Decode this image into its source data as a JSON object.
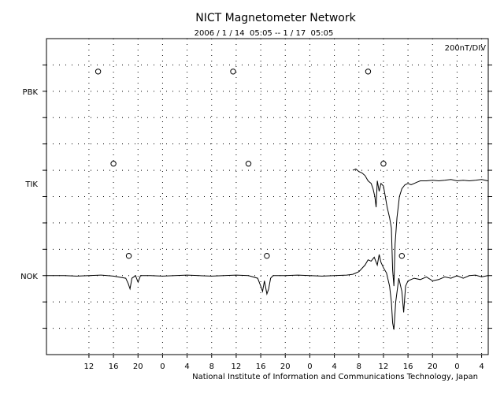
{
  "chart_data": {
    "type": "line",
    "title": "NICT Magnetometer Network",
    "subtitle": "2006 / 1 / 14  05:05 -- 1 / 17  05:05",
    "scale_label": "200nT/DIV",
    "footer": "National Institute of Information and Communications Technology, Japan",
    "x_tick_labels": [
      "12",
      "16",
      "20",
      "0",
      "4",
      "8",
      "12",
      "16",
      "20",
      "0",
      "4",
      "8",
      "12",
      "16",
      "20",
      "0",
      "4"
    ],
    "x_tick_hours": [
      12,
      16,
      20,
      24,
      28,
      32,
      36,
      40,
      44,
      48,
      52,
      56,
      60,
      64,
      68,
      72,
      76
    ],
    "xlim": [
      5.08,
      77.08
    ],
    "y_divisions": 12,
    "grid": true,
    "stations": [
      {
        "name": "PBK",
        "baseline_div": 10,
        "points": [],
        "midnight_markers_hour": [
          13.5,
          35.5,
          57.5
        ]
      },
      {
        "name": "TIK",
        "baseline_div": 6.5,
        "points": [
          [
            55.0,
            7.0
          ],
          [
            55.5,
            7.05
          ],
          [
            56.0,
            6.95
          ],
          [
            56.5,
            6.9
          ],
          [
            57.0,
            6.8
          ],
          [
            57.5,
            6.6
          ],
          [
            58.0,
            6.5
          ],
          [
            58.3,
            6.3
          ],
          [
            58.6,
            6.0
          ],
          [
            58.8,
            5.6
          ],
          [
            59.0,
            6.6
          ],
          [
            59.3,
            6.2
          ],
          [
            59.6,
            6.5
          ],
          [
            60.0,
            6.4
          ],
          [
            60.3,
            6.0
          ],
          [
            60.6,
            5.6
          ],
          [
            61.0,
            5.2
          ],
          [
            61.3,
            4.8
          ],
          [
            61.5,
            3.2
          ],
          [
            61.7,
            2.6
          ],
          [
            61.9,
            4.2
          ],
          [
            62.2,
            5.2
          ],
          [
            62.6,
            6.0
          ],
          [
            63.0,
            6.3
          ],
          [
            63.5,
            6.45
          ],
          [
            64.0,
            6.5
          ],
          [
            64.5,
            6.45
          ],
          [
            65.0,
            6.5
          ],
          [
            65.5,
            6.55
          ],
          [
            66.0,
            6.6
          ],
          [
            67.0,
            6.6
          ],
          [
            68.0,
            6.62
          ],
          [
            69.0,
            6.6
          ],
          [
            70.0,
            6.62
          ],
          [
            71.0,
            6.65
          ],
          [
            72.0,
            6.6
          ],
          [
            73.0,
            6.62
          ],
          [
            74.0,
            6.6
          ],
          [
            75.0,
            6.62
          ],
          [
            76.0,
            6.65
          ],
          [
            77.0,
            6.6
          ]
        ],
        "midnight_markers_hour": [
          16.0,
          38.0,
          60.0
        ]
      },
      {
        "name": "NOK",
        "baseline_div": 3,
        "points": [
          [
            5.08,
            3.0
          ],
          [
            8.0,
            3.0
          ],
          [
            10.0,
            2.98
          ],
          [
            12.0,
            3.0
          ],
          [
            14.0,
            3.02
          ],
          [
            16.0,
            2.98
          ],
          [
            18.0,
            2.9
          ],
          [
            18.4,
            2.7
          ],
          [
            18.7,
            2.5
          ],
          [
            19.0,
            2.9
          ],
          [
            19.6,
            3.0
          ],
          [
            20.0,
            2.75
          ],
          [
            20.4,
            3.0
          ],
          [
            22.0,
            3.0
          ],
          [
            24.0,
            2.98
          ],
          [
            26.0,
            3.0
          ],
          [
            28.0,
            3.02
          ],
          [
            30.0,
            3.0
          ],
          [
            32.0,
            2.98
          ],
          [
            34.0,
            3.0
          ],
          [
            36.0,
            3.02
          ],
          [
            38.0,
            3.0
          ],
          [
            39.5,
            2.9
          ],
          [
            40.0,
            2.6
          ],
          [
            40.3,
            2.4
          ],
          [
            40.6,
            2.8
          ],
          [
            41.0,
            2.3
          ],
          [
            41.3,
            2.5
          ],
          [
            41.6,
            2.9
          ],
          [
            42.0,
            3.0
          ],
          [
            44.0,
            3.0
          ],
          [
            46.0,
            3.02
          ],
          [
            48.0,
            3.0
          ],
          [
            50.0,
            2.98
          ],
          [
            52.0,
            3.0
          ],
          [
            54.0,
            3.02
          ],
          [
            55.0,
            3.05
          ],
          [
            56.0,
            3.15
          ],
          [
            57.0,
            3.4
          ],
          [
            57.5,
            3.6
          ],
          [
            58.0,
            3.55
          ],
          [
            58.5,
            3.7
          ],
          [
            59.0,
            3.4
          ],
          [
            59.3,
            3.8
          ],
          [
            59.6,
            3.5
          ],
          [
            60.0,
            3.3
          ],
          [
            60.5,
            3.1
          ],
          [
            61.0,
            2.6
          ],
          [
            61.3,
            2.0
          ],
          [
            61.5,
            1.2
          ],
          [
            61.7,
            0.95
          ],
          [
            62.0,
            2.0
          ],
          [
            62.5,
            2.9
          ],
          [
            63.0,
            2.4
          ],
          [
            63.3,
            1.6
          ],
          [
            63.6,
            2.6
          ],
          [
            64.0,
            2.8
          ],
          [
            65.0,
            2.9
          ],
          [
            66.0,
            2.85
          ],
          [
            67.0,
            2.95
          ],
          [
            68.0,
            2.8
          ],
          [
            69.0,
            2.85
          ],
          [
            70.0,
            2.95
          ],
          [
            71.0,
            2.9
          ],
          [
            72.0,
            3.0
          ],
          [
            73.0,
            2.9
          ],
          [
            74.0,
            3.0
          ],
          [
            75.0,
            3.02
          ],
          [
            76.0,
            2.95
          ],
          [
            77.0,
            3.0
          ]
        ],
        "midnight_markers_hour": [
          18.5,
          41.0,
          63.0
        ]
      }
    ]
  }
}
